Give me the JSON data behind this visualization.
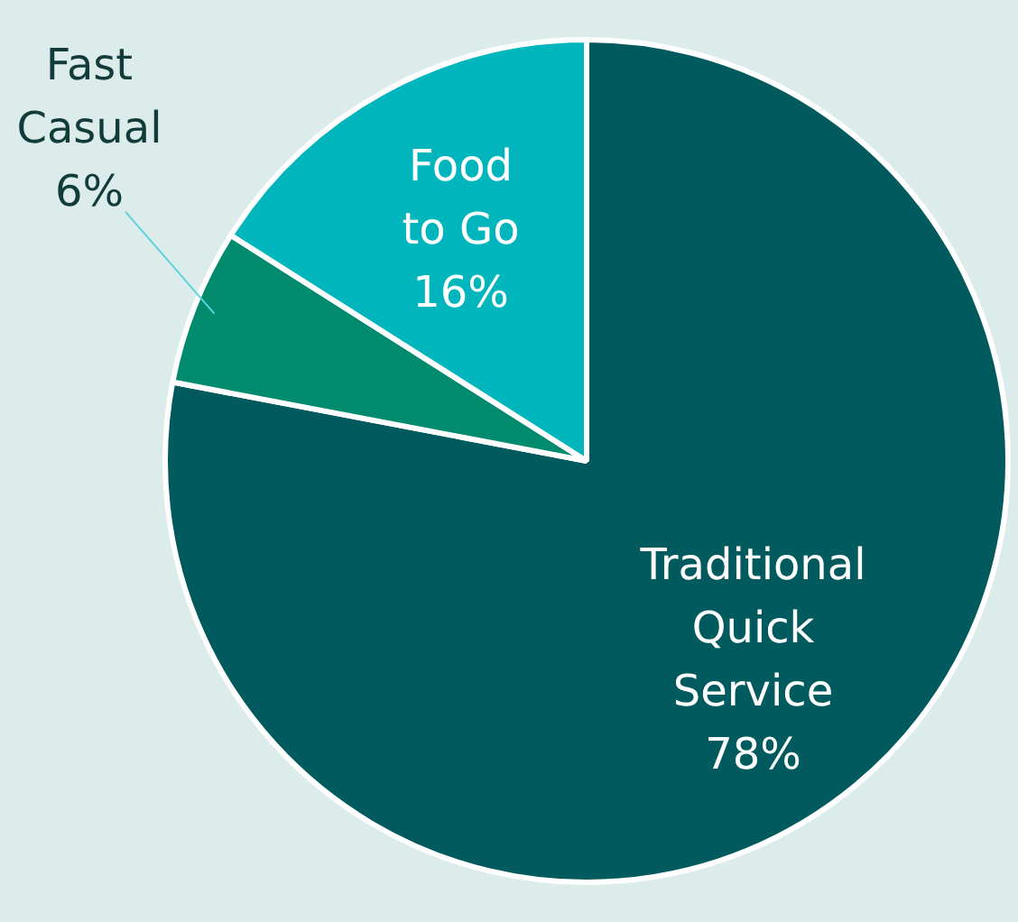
{
  "chart_data": {
    "type": "pie",
    "categories": [
      "Traditional Quick Service",
      "Fast Casual",
      "Food to Go"
    ],
    "values": [
      78,
      6,
      16
    ],
    "colors": [
      "#005a5e",
      "#008a6e",
      "#00b5bb"
    ],
    "value_labels": [
      "78%",
      "6%",
      "16%"
    ],
    "legend": false
  }
}
